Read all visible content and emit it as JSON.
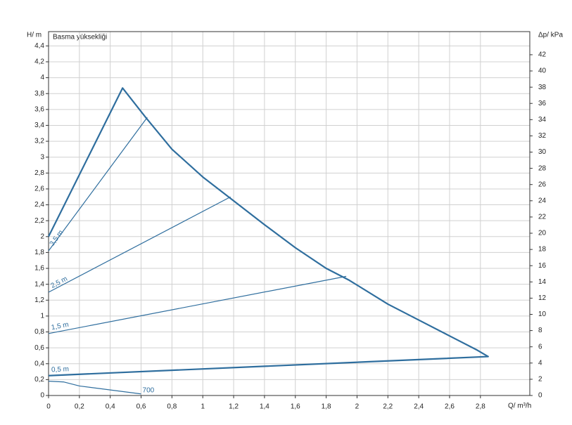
{
  "chart_data": {
    "type": "line",
    "title": "Basma yüksekliği",
    "y_label": "H/ m",
    "y2_label": "Δp/ kPa",
    "x_label": "Q/ m³/h",
    "xlim": [
      0,
      3.12
    ],
    "ylim": [
      0,
      4.58
    ],
    "y2lim": [
      0,
      44.85
    ],
    "grid": true,
    "xticks": [
      0,
      {
        "value": 0.2,
        "label": "0,2"
      },
      {
        "value": 0.4,
        "label": "0,4"
      },
      {
        "value": 0.6,
        "label": "0,6"
      },
      {
        "value": 0.8,
        "label": "0,8"
      },
      1,
      {
        "value": 1.2,
        "label": "1,2"
      },
      {
        "value": 1.4,
        "label": "1,4"
      },
      {
        "value": 1.6,
        "label": "1,6"
      },
      {
        "value": 1.8,
        "label": "1,8"
      },
      2,
      {
        "value": 2.2,
        "label": "2,2"
      },
      {
        "value": 2.4,
        "label": "2,4"
      },
      {
        "value": 2.6,
        "label": "2,6"
      },
      {
        "value": 2.8,
        "label": "2,8"
      }
    ],
    "yticks": [
      0,
      {
        "value": 0.2,
        "label": "0,2"
      },
      {
        "value": 0.4,
        "label": "0,4"
      },
      {
        "value": 0.6,
        "label": "0,6"
      },
      {
        "value": 0.8,
        "label": "0,8"
      },
      1,
      {
        "value": 1.2,
        "label": "1,2"
      },
      {
        "value": 1.4,
        "label": "1,4"
      },
      {
        "value": 1.6,
        "label": "1,6"
      },
      {
        "value": 1.8,
        "label": "1,8"
      },
      2,
      {
        "value": 2.2,
        "label": "2,2"
      },
      {
        "value": 2.4,
        "label": "2,4"
      },
      {
        "value": 2.6,
        "label": "2,6"
      },
      {
        "value": 2.8,
        "label": "2,8"
      },
      3,
      {
        "value": 3.2,
        "label": "3,2"
      },
      {
        "value": 3.4,
        "label": "3,4"
      },
      {
        "value": 3.6,
        "label": "3,6"
      },
      {
        "value": 3.8,
        "label": "3,8"
      },
      4,
      {
        "value": 4.2,
        "label": "4,2"
      },
      {
        "value": 4.4,
        "label": "4,4"
      }
    ],
    "y2ticks": [
      0,
      2,
      4,
      6,
      8,
      10,
      12,
      14,
      16,
      18,
      20,
      22,
      24,
      26,
      28,
      30,
      32,
      34,
      36,
      38,
      40,
      42
    ],
    "series": [
      {
        "color": "#2f6e9e",
        "width": 2.2,
        "x": [
          0,
          0.48,
          0.63,
          0.8,
          1.0,
          1.2,
          1.4,
          1.6,
          1.8,
          1.95,
          2.2,
          2.4,
          2.6,
          2.78,
          2.85,
          0
        ],
        "values": [
          2.0,
          3.87,
          3.5,
          3.1,
          2.75,
          2.45,
          2.15,
          1.86,
          1.6,
          1.45,
          1.15,
          0.95,
          0.75,
          0.57,
          0.49,
          0.25
        ]
      },
      {
        "name": "3,5 m",
        "color": "#2f6e9e",
        "width": 1.2,
        "x": [
          0,
          0.64
        ],
        "values": [
          1.82,
          3.5
        ]
      },
      {
        "name": "2,5 m",
        "color": "#2f6e9e",
        "width": 1.2,
        "x": [
          0,
          1.18
        ],
        "values": [
          1.3,
          2.5
        ]
      },
      {
        "name": "1,5 m",
        "color": "#2f6e9e",
        "width": 1.2,
        "x": [
          0,
          1.93
        ],
        "values": [
          0.78,
          1.5
        ]
      },
      {
        "name": "0,5 m",
        "color": "#2f6e9e",
        "width": 1.2,
        "x": [
          0,
          2.85
        ],
        "values": [
          0.25,
          0.49
        ]
      },
      {
        "name": "700",
        "color": "#2f6e9e",
        "width": 1.2,
        "x": [
          0,
          0.1,
          0.2,
          0.6
        ],
        "values": [
          0.18,
          0.17,
          0.12,
          0.02
        ]
      }
    ]
  }
}
